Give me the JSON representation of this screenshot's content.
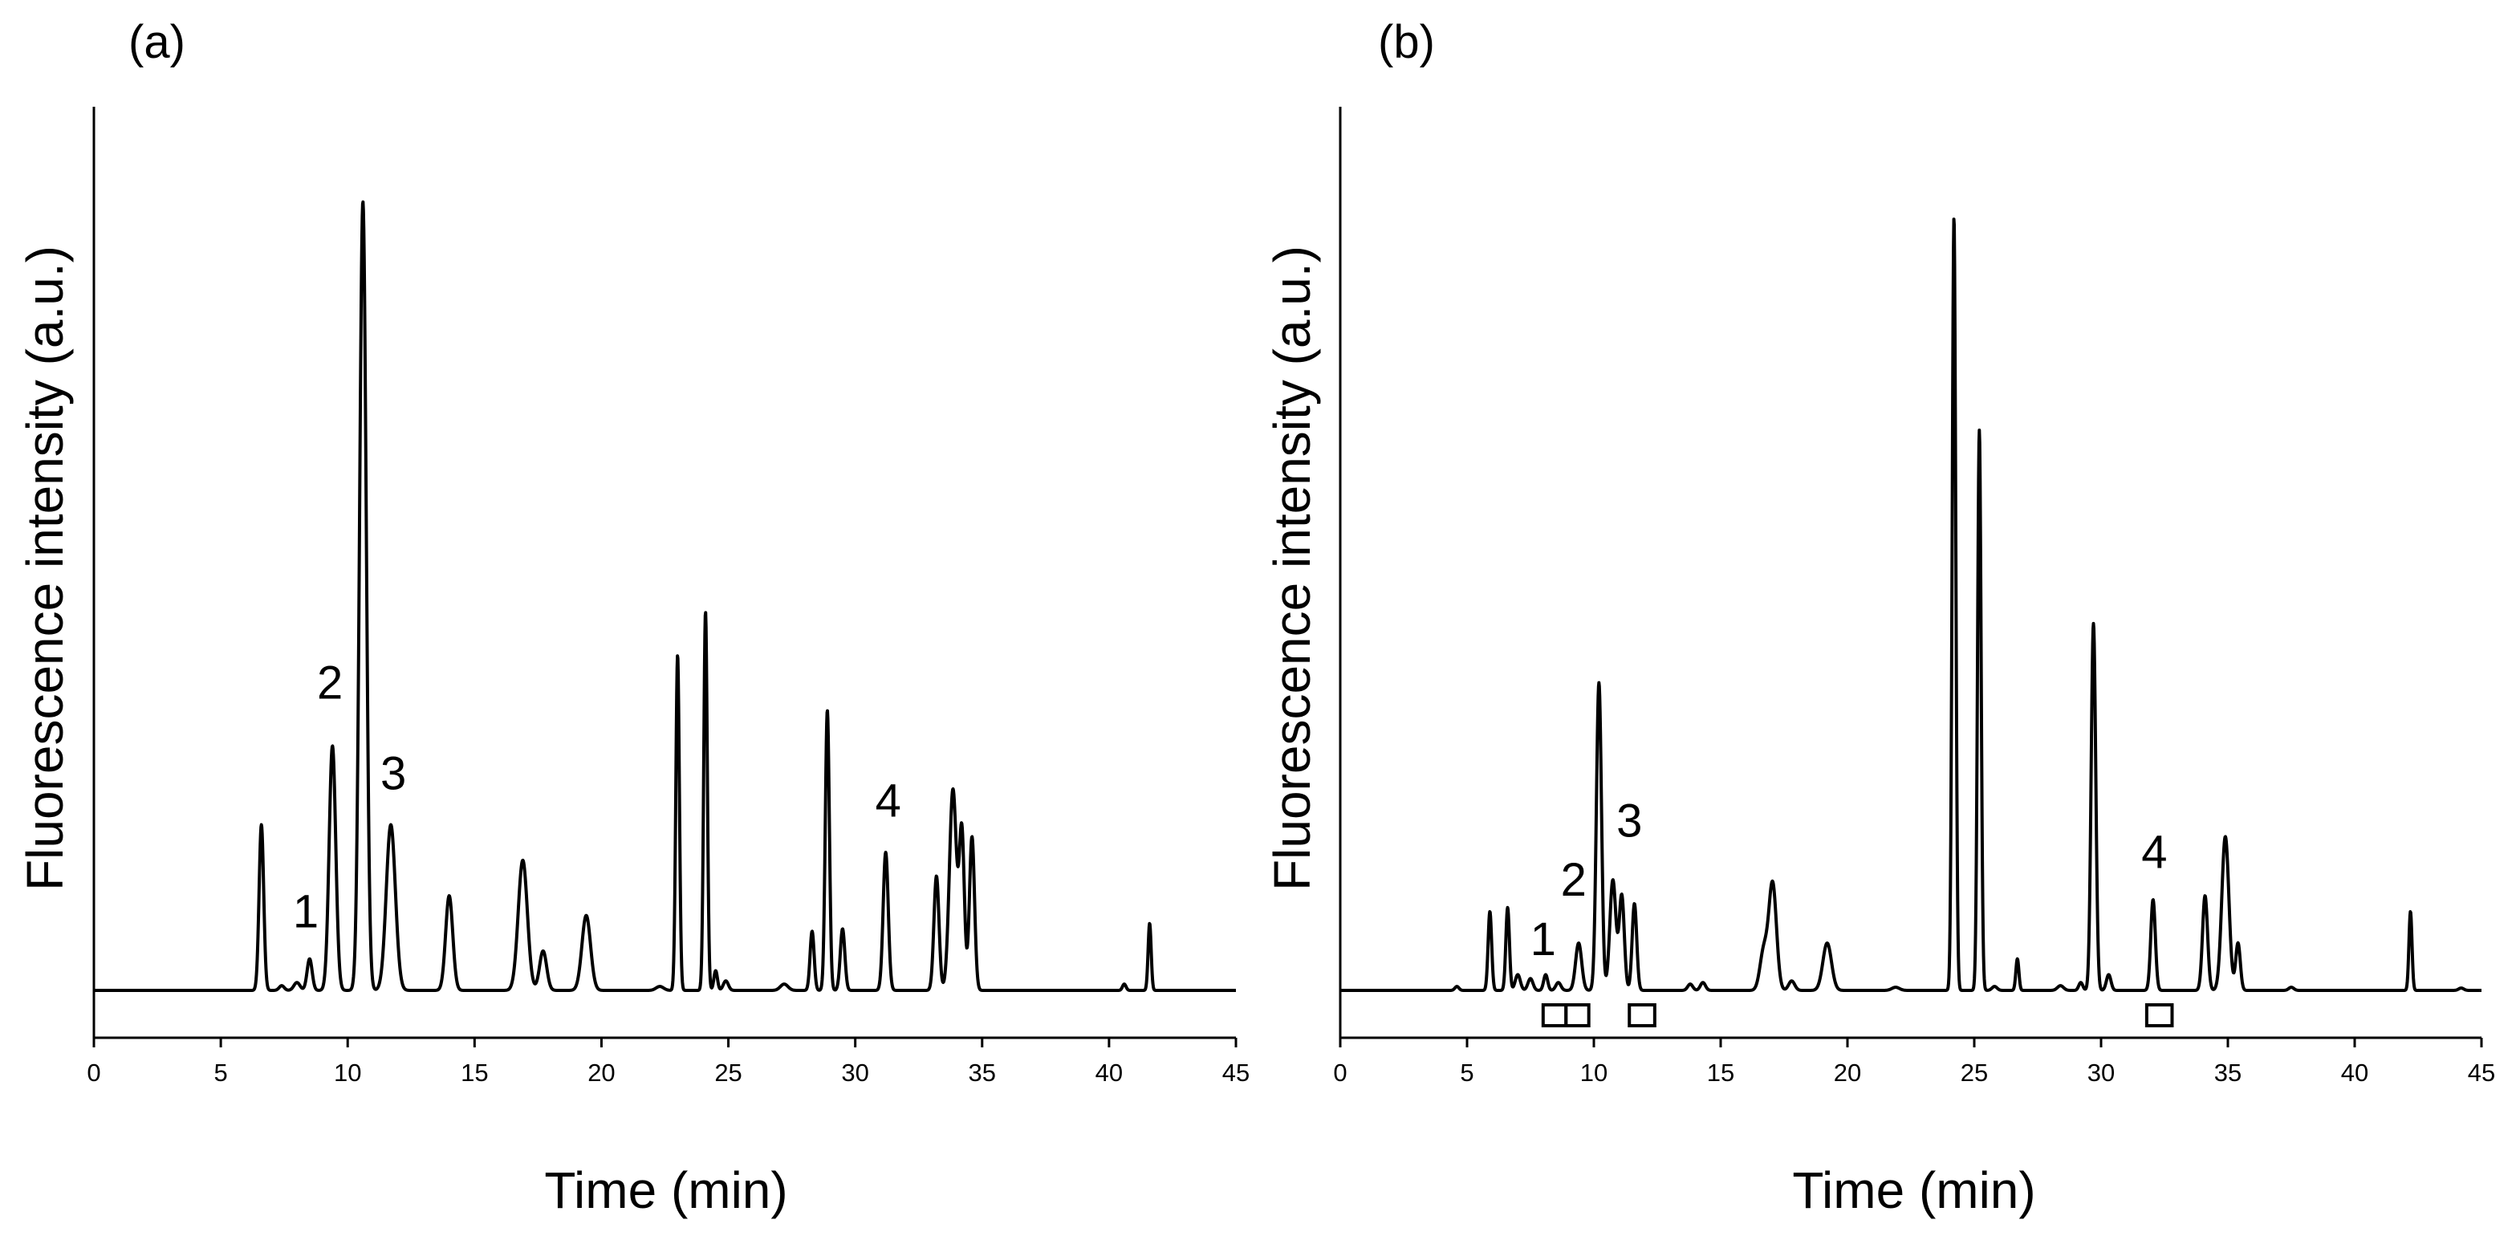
{
  "figure": {
    "line_color": "#000000",
    "background": "#ffffff"
  },
  "chart_data": [
    {
      "panel": "(a)",
      "type": "line",
      "xlabel": "Time (min)",
      "ylabel": "Fluorescence intensity (a.u.)",
      "xlim": [
        0,
        45
      ],
      "ylim": [
        -0.06,
        1.12
      ],
      "xticks": [
        0,
        5,
        10,
        15,
        20,
        25,
        30,
        35,
        40,
        45
      ],
      "yticks_shown": false,
      "baseline": 0,
      "peaks": [
        {
          "t": 6.6,
          "h": 0.21,
          "w": 0.09
        },
        {
          "t": 7.4,
          "h": 0.006,
          "w": 0.1
        },
        {
          "t": 8.0,
          "h": 0.01,
          "w": 0.12
        },
        {
          "t": 8.5,
          "h": 0.04,
          "w": 0.1
        },
        {
          "t": 9.4,
          "h": 0.31,
          "w": 0.13
        },
        {
          "t": 10.6,
          "h": 1.0,
          "w": 0.13
        },
        {
          "t": 11.7,
          "h": 0.21,
          "w": 0.18
        },
        {
          "t": 14.0,
          "h": 0.12,
          "w": 0.14
        },
        {
          "t": 16.9,
          "h": 0.165,
          "w": 0.18
        },
        {
          "t": 17.7,
          "h": 0.05,
          "w": 0.14
        },
        {
          "t": 19.4,
          "h": 0.095,
          "w": 0.17
        },
        {
          "t": 22.3,
          "h": 0.005,
          "w": 0.15
        },
        {
          "t": 23.0,
          "h": 0.425,
          "w": 0.07
        },
        {
          "t": 24.1,
          "h": 0.48,
          "w": 0.07
        },
        {
          "t": 24.5,
          "h": 0.025,
          "w": 0.07
        },
        {
          "t": 24.9,
          "h": 0.012,
          "w": 0.1
        },
        {
          "t": 27.2,
          "h": 0.008,
          "w": 0.15
        },
        {
          "t": 28.3,
          "h": 0.075,
          "w": 0.08
        },
        {
          "t": 28.9,
          "h": 0.355,
          "w": 0.08
        },
        {
          "t": 29.5,
          "h": 0.078,
          "w": 0.09
        },
        {
          "t": 31.2,
          "h": 0.175,
          "w": 0.1
        },
        {
          "t": 33.2,
          "h": 0.145,
          "w": 0.1
        },
        {
          "t": 33.85,
          "h": 0.255,
          "w": 0.14
        },
        {
          "t": 34.2,
          "h": 0.2,
          "w": 0.1
        },
        {
          "t": 34.6,
          "h": 0.195,
          "w": 0.1
        },
        {
          "t": 40.6,
          "h": 0.008,
          "w": 0.07
        },
        {
          "t": 41.6,
          "h": 0.085,
          "w": 0.06
        }
      ],
      "annotations": [
        {
          "text": "1",
          "t": 8.35,
          "y": 0.08
        },
        {
          "text": "2",
          "t": 9.3,
          "y": 0.37
        },
        {
          "text": "3",
          "t": 11.8,
          "y": 0.255
        },
        {
          "text": "4",
          "t": 31.3,
          "y": 0.22
        }
      ],
      "fraction_boxes": []
    },
    {
      "panel": "(b)",
      "type": "line",
      "xlabel": "Time (min)",
      "ylabel": "Fluorescence intensity (a.u.)",
      "xlim": [
        0,
        45
      ],
      "ylim": [
        -0.06,
        1.12
      ],
      "xticks": [
        0,
        5,
        10,
        15,
        20,
        25,
        30,
        35,
        40,
        45
      ],
      "yticks_shown": false,
      "baseline": 0,
      "peaks": [
        {
          "t": 4.6,
          "h": 0.005,
          "w": 0.08
        },
        {
          "t": 5.9,
          "h": 0.1,
          "w": 0.07
        },
        {
          "t": 6.6,
          "h": 0.105,
          "w": 0.07
        },
        {
          "t": 7.0,
          "h": 0.02,
          "w": 0.1
        },
        {
          "t": 7.5,
          "h": 0.015,
          "w": 0.1
        },
        {
          "t": 8.1,
          "h": 0.02,
          "w": 0.08
        },
        {
          "t": 8.6,
          "h": 0.01,
          "w": 0.1
        },
        {
          "t": 9.4,
          "h": 0.06,
          "w": 0.12
        },
        {
          "t": 10.2,
          "h": 0.39,
          "w": 0.1
        },
        {
          "t": 10.75,
          "h": 0.14,
          "w": 0.12
        },
        {
          "t": 11.1,
          "h": 0.12,
          "w": 0.1
        },
        {
          "t": 11.6,
          "h": 0.11,
          "w": 0.09
        },
        {
          "t": 13.8,
          "h": 0.008,
          "w": 0.1
        },
        {
          "t": 14.3,
          "h": 0.01,
          "w": 0.1
        },
        {
          "t": 16.7,
          "h": 0.05,
          "w": 0.15
        },
        {
          "t": 17.05,
          "h": 0.135,
          "w": 0.15
        },
        {
          "t": 17.8,
          "h": 0.012,
          "w": 0.12
        },
        {
          "t": 19.2,
          "h": 0.06,
          "w": 0.17
        },
        {
          "t": 21.9,
          "h": 0.004,
          "w": 0.15
        },
        {
          "t": 24.2,
          "h": 0.98,
          "w": 0.07
        },
        {
          "t": 25.2,
          "h": 0.71,
          "w": 0.07
        },
        {
          "t": 25.8,
          "h": 0.005,
          "w": 0.1
        },
        {
          "t": 26.7,
          "h": 0.04,
          "w": 0.06
        },
        {
          "t": 28.4,
          "h": 0.006,
          "w": 0.12
        },
        {
          "t": 29.2,
          "h": 0.01,
          "w": 0.08
        },
        {
          "t": 29.7,
          "h": 0.465,
          "w": 0.09
        },
        {
          "t": 30.3,
          "h": 0.02,
          "w": 0.09
        },
        {
          "t": 32.05,
          "h": 0.115,
          "w": 0.09
        },
        {
          "t": 34.1,
          "h": 0.12,
          "w": 0.1
        },
        {
          "t": 34.9,
          "h": 0.195,
          "w": 0.14
        },
        {
          "t": 35.4,
          "h": 0.06,
          "w": 0.09
        },
        {
          "t": 37.5,
          "h": 0.004,
          "w": 0.1
        },
        {
          "t": 42.2,
          "h": 0.1,
          "w": 0.06
        },
        {
          "t": 44.2,
          "h": 0.003,
          "w": 0.1
        }
      ],
      "annotations": [
        {
          "text": "1",
          "t": 8.0,
          "y": 0.045
        },
        {
          "text": "2",
          "t": 9.2,
          "y": 0.12
        },
        {
          "text": "3",
          "t": 11.4,
          "y": 0.195
        },
        {
          "text": "4",
          "t": 32.1,
          "y": 0.155
        }
      ],
      "fraction_boxes": [
        {
          "t0": 8.0,
          "t1": 8.9
        },
        {
          "t0": 8.9,
          "t1": 9.8
        },
        {
          "t0": 11.4,
          "t1": 12.4
        },
        {
          "t0": 31.8,
          "t1": 32.8
        }
      ]
    }
  ]
}
